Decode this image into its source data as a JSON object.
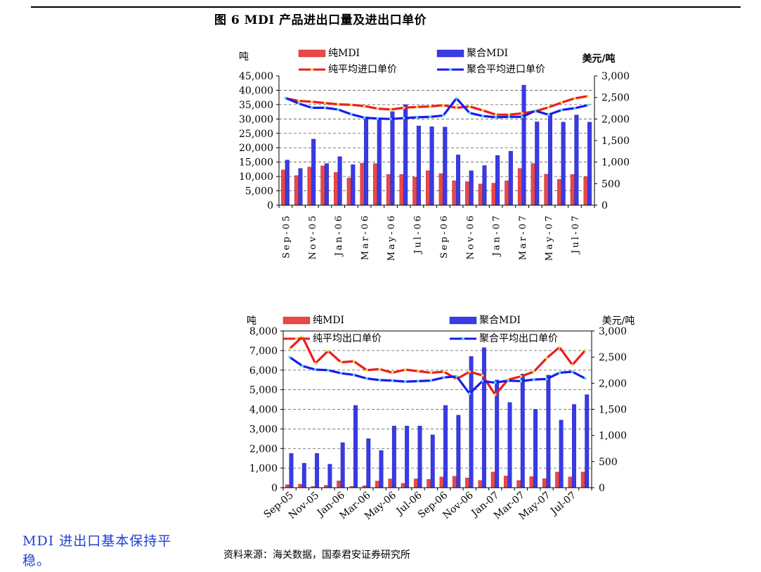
{
  "page": {
    "figure_title": "图 6   MDI 产品进出口量及进出口单价",
    "side_note": "MDI 进出口基本保持平稳。",
    "source": "资料来源：海关数据，国泰君安证券研究所"
  },
  "colors": {
    "bar_pure": "#e84848",
    "bar_polymeric": "#3a3ae6",
    "line_pure": "#ee1c1c",
    "line_polymeric": "#1a1aee",
    "marker_pure": "#f0e040",
    "marker_polymeric": "#40e0f0",
    "side_note": "#1f3fd6"
  },
  "chart_data": [
    {
      "type": "bar",
      "categories": [
        "Sep-05",
        "Oct-05",
        "Nov-05",
        "Dec-05",
        "Jan-06",
        "Feb-06",
        "Mar-06",
        "Apr-06",
        "May-06",
        "Jun-06",
        "Jul-06",
        "Aug-06",
        "Sep-06",
        "Oct-06",
        "Nov-06",
        "Dec-06",
        "Jan-07",
        "Feb-07",
        "Mar-07",
        "Apr-07",
        "May-07",
        "Jun-07",
        "Jul-07",
        "Aug-07"
      ],
      "tick_labels": [
        "Sep-05",
        "Nov-05",
        "Jan-06",
        "Mar-06",
        "May-06",
        "Jul-06",
        "Sep-06",
        "Nov-06",
        "Jan-07",
        "Mar-07",
        "May-07",
        "Jul-07"
      ],
      "left_unit": "吨",
      "right_unit": "美元/吨",
      "ylim": [
        0,
        45000
      ],
      "y2lim": [
        0,
        3000
      ],
      "yticks": [
        "45,000",
        "40,000",
        "35,000",
        "30,000",
        "25,000",
        "20,000",
        "15,000",
        "10,000",
        "5,000",
        "0"
      ],
      "y2ticks": [
        "3,000",
        "2,500",
        "2,000",
        "1,500",
        "1,000",
        "500",
        "0"
      ],
      "grid": true,
      "legend_placement": "top",
      "series": [
        {
          "name": "纯MDI",
          "kind": "bar",
          "axis": "left",
          "values": [
            12300,
            10300,
            13300,
            13700,
            11400,
            9500,
            14600,
            14500,
            10700,
            10700,
            9800,
            12000,
            11000,
            8500,
            8200,
            7400,
            7700,
            8500,
            12800,
            14500,
            10800,
            9000,
            10700,
            9900
          ]
        },
        {
          "name": "聚合MDI",
          "kind": "bar",
          "axis": "left",
          "values": [
            15700,
            12800,
            23000,
            14500,
            16900,
            14100,
            30700,
            30300,
            32600,
            35000,
            27600,
            27300,
            27200,
            17500,
            12000,
            13800,
            17300,
            18800,
            41800,
            29000,
            31700,
            28900,
            31400,
            28900
          ]
        },
        {
          "name": "纯平均进口单价",
          "kind": "line",
          "axis": "right",
          "values": [
            2480,
            2420,
            2400,
            2370,
            2340,
            2330,
            2300,
            2240,
            2220,
            2260,
            2280,
            2290,
            2320,
            2260,
            2290,
            2200,
            2100,
            2100,
            2130,
            2180,
            2270,
            2380,
            2480,
            2530
          ]
        },
        {
          "name": "聚合平均进口单价",
          "kind": "line",
          "axis": "right",
          "values": [
            2490,
            2360,
            2260,
            2260,
            2220,
            2110,
            2030,
            2010,
            2000,
            2020,
            2040,
            2050,
            2080,
            2480,
            2140,
            2070,
            2040,
            2050,
            2050,
            2190,
            2100,
            2210,
            2250,
            2320
          ]
        }
      ]
    },
    {
      "type": "bar",
      "categories": [
        "Sep-05",
        "Oct-05",
        "Nov-05",
        "Dec-05",
        "Jan-06",
        "Feb-06",
        "Mar-06",
        "Apr-06",
        "May-06",
        "Jun-06",
        "Jul-06",
        "Aug-06",
        "Sep-06",
        "Oct-06",
        "Nov-06",
        "Dec-06",
        "Jan-07",
        "Feb-07",
        "Mar-07",
        "Apr-07",
        "May-07",
        "Jun-07",
        "Jul-07",
        "Aug-07"
      ],
      "tick_labels": [
        "Sep-05",
        "Nov-05",
        "Jan-06",
        "Mar-06",
        "May-06",
        "Jul-06",
        "Sep-06",
        "Nov-06",
        "Jan-07",
        "Mar-07",
        "May-07",
        "Jul-07"
      ],
      "left_unit": "吨",
      "right_unit": "美元/吨",
      "ylim": [
        0,
        8000
      ],
      "y2lim": [
        0,
        3000
      ],
      "yticks": [
        "8,000",
        "7,000",
        "6,000",
        "5,000",
        "4,000",
        "3,000",
        "2,000",
        "1,000",
        "0"
      ],
      "y2ticks": [
        "3,000",
        "2,500",
        "2,000",
        "1,500",
        "1,000",
        "500",
        "0"
      ],
      "grid": true,
      "legend_placement": "top",
      "series": [
        {
          "name": "纯MDI",
          "kind": "bar",
          "axis": "left",
          "values": [
            150,
            180,
            60,
            120,
            350,
            70,
            100,
            340,
            450,
            220,
            450,
            430,
            550,
            580,
            500,
            370,
            800,
            600,
            370,
            570,
            460,
            800,
            550,
            800
          ]
        },
        {
          "name": "聚合MDI",
          "kind": "bar",
          "axis": "left",
          "values": [
            1750,
            1250,
            1750,
            1200,
            2300,
            4200,
            2500,
            1900,
            3150,
            3150,
            3150,
            2700,
            4200,
            3700,
            6700,
            7150,
            5500,
            4350,
            5800,
            4000,
            5750,
            3450,
            4250,
            4750
          ]
        },
        {
          "name": "纯平均出口单价",
          "kind": "line",
          "axis": "right",
          "values": [
            2660,
            2890,
            2380,
            2620,
            2400,
            2420,
            2250,
            2270,
            2200,
            2260,
            2230,
            2200,
            2220,
            2080,
            2220,
            2150,
            1780,
            2070,
            2130,
            2220,
            2480,
            2690,
            2350,
            2630
          ]
        },
        {
          "name": "聚合平均出口单价",
          "kind": "line",
          "axis": "right",
          "values": [
            2500,
            2330,
            2260,
            2250,
            2190,
            2160,
            2090,
            2060,
            2050,
            2030,
            2040,
            2050,
            2110,
            2130,
            1800,
            2040,
            2010,
            2050,
            2040,
            2070,
            2080,
            2200,
            2220,
            2090
          ]
        }
      ]
    }
  ]
}
